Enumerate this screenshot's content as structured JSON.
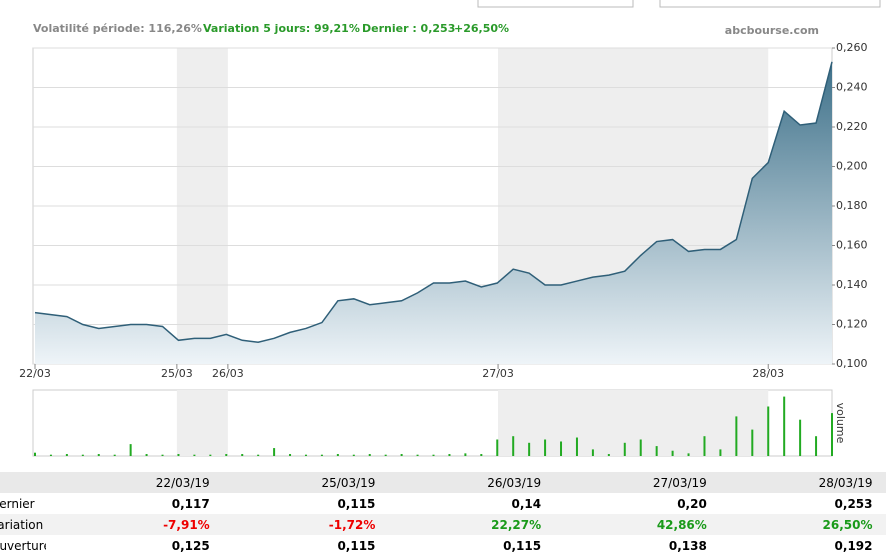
{
  "header": {
    "volatility": "Volatilité période: 116,26%",
    "variation": "Variation 5 jours: 99,21%",
    "last": "Dernier : 0,253",
    "change": "+26,50%",
    "source": "abcbourse.com"
  },
  "chart_data": [
    {
      "type": "area",
      "color": "#2f5f78",
      "x": [
        0,
        2,
        4,
        6,
        8,
        10,
        12,
        14,
        16,
        18,
        20,
        22,
        24,
        26,
        28,
        30,
        32,
        34,
        36,
        38,
        40,
        42,
        44,
        46,
        48,
        50,
        52,
        54,
        56,
        58,
        60,
        62,
        64,
        66,
        68,
        70,
        72,
        74,
        76,
        78,
        80,
        82,
        84,
        86,
        88,
        90,
        92,
        94,
        96,
        98,
        100
      ],
      "values": [
        0.126,
        0.125,
        0.124,
        0.12,
        0.118,
        0.119,
        0.12,
        0.12,
        0.119,
        0.112,
        0.113,
        0.113,
        0.115,
        0.112,
        0.111,
        0.113,
        0.116,
        0.118,
        0.121,
        0.132,
        0.133,
        0.13,
        0.131,
        0.132,
        0.136,
        0.141,
        0.141,
        0.142,
        0.139,
        0.141,
        0.148,
        0.146,
        0.14,
        0.14,
        0.142,
        0.144,
        0.145,
        0.147,
        0.155,
        0.162,
        0.163,
        0.157,
        0.158,
        0.158,
        0.163,
        0.194,
        0.202,
        0.228,
        0.221,
        0.222,
        0.253
      ],
      "xlim": [
        0,
        100
      ],
      "xticks": [
        {
          "value": 0,
          "label": "22/03"
        },
        {
          "value": 17.8,
          "label": "25/03"
        },
        {
          "value": 24.2,
          "label": "26/03"
        },
        {
          "value": 58.1,
          "label": "27/03"
        },
        {
          "value": 92,
          "label": "28/03"
        }
      ],
      "ylim": [
        0.1,
        0.26
      ],
      "yticks": [
        {
          "value": 0.1,
          "label": "0,100"
        },
        {
          "value": 0.12,
          "label": "0,120"
        },
        {
          "value": 0.14,
          "label": "0,140"
        },
        {
          "value": 0.16,
          "label": "0,160"
        },
        {
          "value": 0.18,
          "label": "0,180"
        },
        {
          "value": 0.2,
          "label": "0,200"
        },
        {
          "value": 0.22,
          "label": "0,220"
        },
        {
          "value": 0.24,
          "label": "0,240"
        },
        {
          "value": 0.26,
          "label": "0,260"
        }
      ],
      "grid": true
    },
    {
      "type": "bar",
      "color": "#22aa22",
      "label": "volume",
      "x": [
        0,
        2,
        4,
        6,
        8,
        10,
        12,
        14,
        16,
        18,
        20,
        22,
        24,
        26,
        28,
        30,
        32,
        34,
        36,
        38,
        40,
        42,
        44,
        46,
        48,
        50,
        52,
        54,
        56,
        58,
        60,
        62,
        64,
        66,
        68,
        70,
        72,
        74,
        76,
        78,
        80,
        82,
        84,
        86,
        88,
        90,
        92,
        94,
        96,
        98,
        100
      ],
      "values": [
        5,
        2,
        3,
        2,
        3,
        2,
        18,
        3,
        2,
        3,
        2,
        2,
        3,
        3,
        2,
        12,
        3,
        2,
        2,
        3,
        2,
        3,
        2,
        3,
        2,
        2,
        3,
        4,
        3,
        25,
        30,
        20,
        25,
        22,
        28,
        10,
        3,
        20,
        25,
        15,
        8,
        4,
        30,
        10,
        60,
        40,
        75,
        90,
        55,
        30,
        65
      ],
      "xlim": [
        0,
        100
      ],
      "ylim": [
        0,
        100
      ]
    }
  ],
  "table": {
    "header": [
      "22/03/19",
      "25/03/19",
      "26/03/19",
      "27/03/19",
      "28/03/19"
    ],
    "rows": [
      [
        "Dernier",
        "0,117",
        "0,115",
        "0,14",
        "0,20",
        "0,253"
      ],
      [
        "Variation",
        "-7,91%",
        "-1,72%",
        "22,27%",
        "42,86%",
        "26,50%"
      ],
      [
        "Ouverture",
        "0,125",
        "0,115",
        "0,115",
        "0,138",
        "0,192"
      ]
    ]
  }
}
